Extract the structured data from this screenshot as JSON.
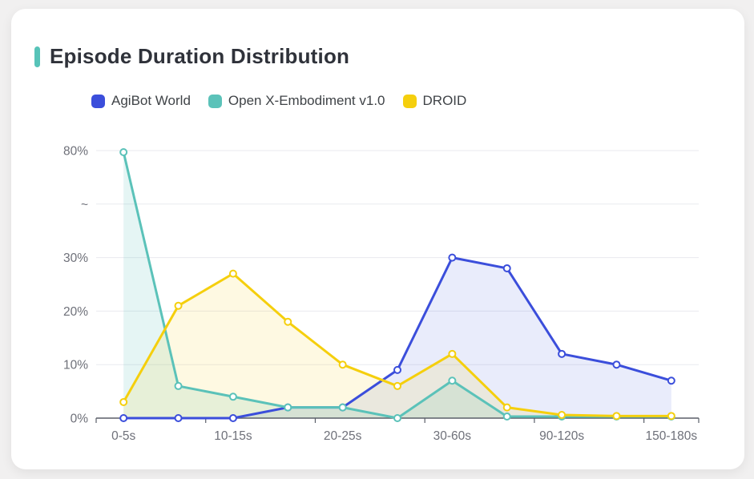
{
  "header": {
    "title": "Episode Duration Distribution"
  },
  "legend": {
    "items": [
      "AgiBot World",
      "Open X-Embodiment v1.0",
      "DROID"
    ]
  },
  "chart_data": {
    "type": "line",
    "title": "Episode Duration Distribution",
    "categories": [
      "0-5s",
      "",
      "10-15s",
      "",
      "20-25s",
      "",
      "30-60s",
      "",
      "90-120s",
      "",
      "150-180s"
    ],
    "visible_x_tick_labels": [
      "0-5s",
      "10-15s",
      "20-25s",
      "30-60s",
      "90-120s",
      "150-180s"
    ],
    "series": [
      {
        "name": "AgiBot World",
        "color": "#3B4EDB",
        "fill_opacity": 0.11,
        "values": [
          0,
          0,
          0,
          2,
          2,
          9,
          30,
          28,
          12,
          10,
          7
        ]
      },
      {
        "name": "Open X-Embodiment v1.0",
        "color": "#5BC2B9",
        "fill_opacity": 0.16,
        "values": [
          79.7,
          6,
          4,
          2,
          2,
          0,
          7,
          0.3,
          0.3,
          0.3,
          0.3
        ]
      },
      {
        "name": "DROID",
        "color": "#F5CF0D",
        "fill_opacity": 0.12,
        "values": [
          3,
          21,
          27,
          18,
          10,
          6,
          12,
          2,
          0.6,
          0.4,
          0.4
        ]
      }
    ],
    "y_axis": {
      "unit": "%",
      "broken_axis": true,
      "ticks": [
        {
          "value": 0,
          "label": "0%"
        },
        {
          "value": 10,
          "label": "10%"
        },
        {
          "value": 20,
          "label": "20%"
        },
        {
          "value": 30,
          "label": "30%"
        },
        {
          "value": "break",
          "label": "~"
        },
        {
          "value": 80,
          "label": "80%"
        }
      ]
    },
    "grid": true,
    "legend_position": "top-left",
    "marker": "hollow-circle",
    "styles": {
      "accent_bar": "#57C3B8",
      "axis_line": "#5A5F69",
      "axis_label": "#6E7079",
      "gridline": "#E9EAEF",
      "title_text": "#2F323A",
      "card_background": "#FFFFFF",
      "page_background": "#F1F0F0"
    }
  }
}
